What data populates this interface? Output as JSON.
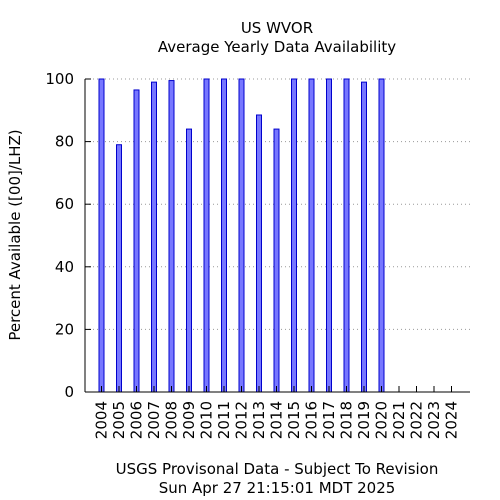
{
  "chart_data": {
    "type": "bar",
    "title": "US WVOR",
    "subtitle": "Average Yearly Data Availability",
    "xlabel": "",
    "ylabel": "Percent Available ([00]/LHZ)",
    "footer_line1": "USGS Provisonal Data - Subject To Revision",
    "footer_line2": "Sun Apr 27 21:15:01 MDT 2025",
    "ylim": [
      0,
      100
    ],
    "yticks": [
      0,
      20,
      40,
      60,
      80,
      100
    ],
    "grid": "horizontal-dotted",
    "categories": [
      "2004",
      "2005",
      "2006",
      "2007",
      "2008",
      "2009",
      "2010",
      "2011",
      "2012",
      "2013",
      "2014",
      "2015",
      "2016",
      "2017",
      "2018",
      "2019",
      "2020",
      "2021",
      "2022",
      "2023",
      "2024"
    ],
    "values": [
      100,
      79,
      96.5,
      99,
      99.5,
      84,
      100,
      100,
      100,
      88.5,
      84,
      100,
      100,
      100,
      100,
      99,
      100,
      null,
      null,
      null,
      null
    ],
    "colors": {
      "bar_fill": "#7777ff",
      "bar_stroke": "#0000cc",
      "grid": "#999999",
      "axis": "#000000"
    }
  }
}
